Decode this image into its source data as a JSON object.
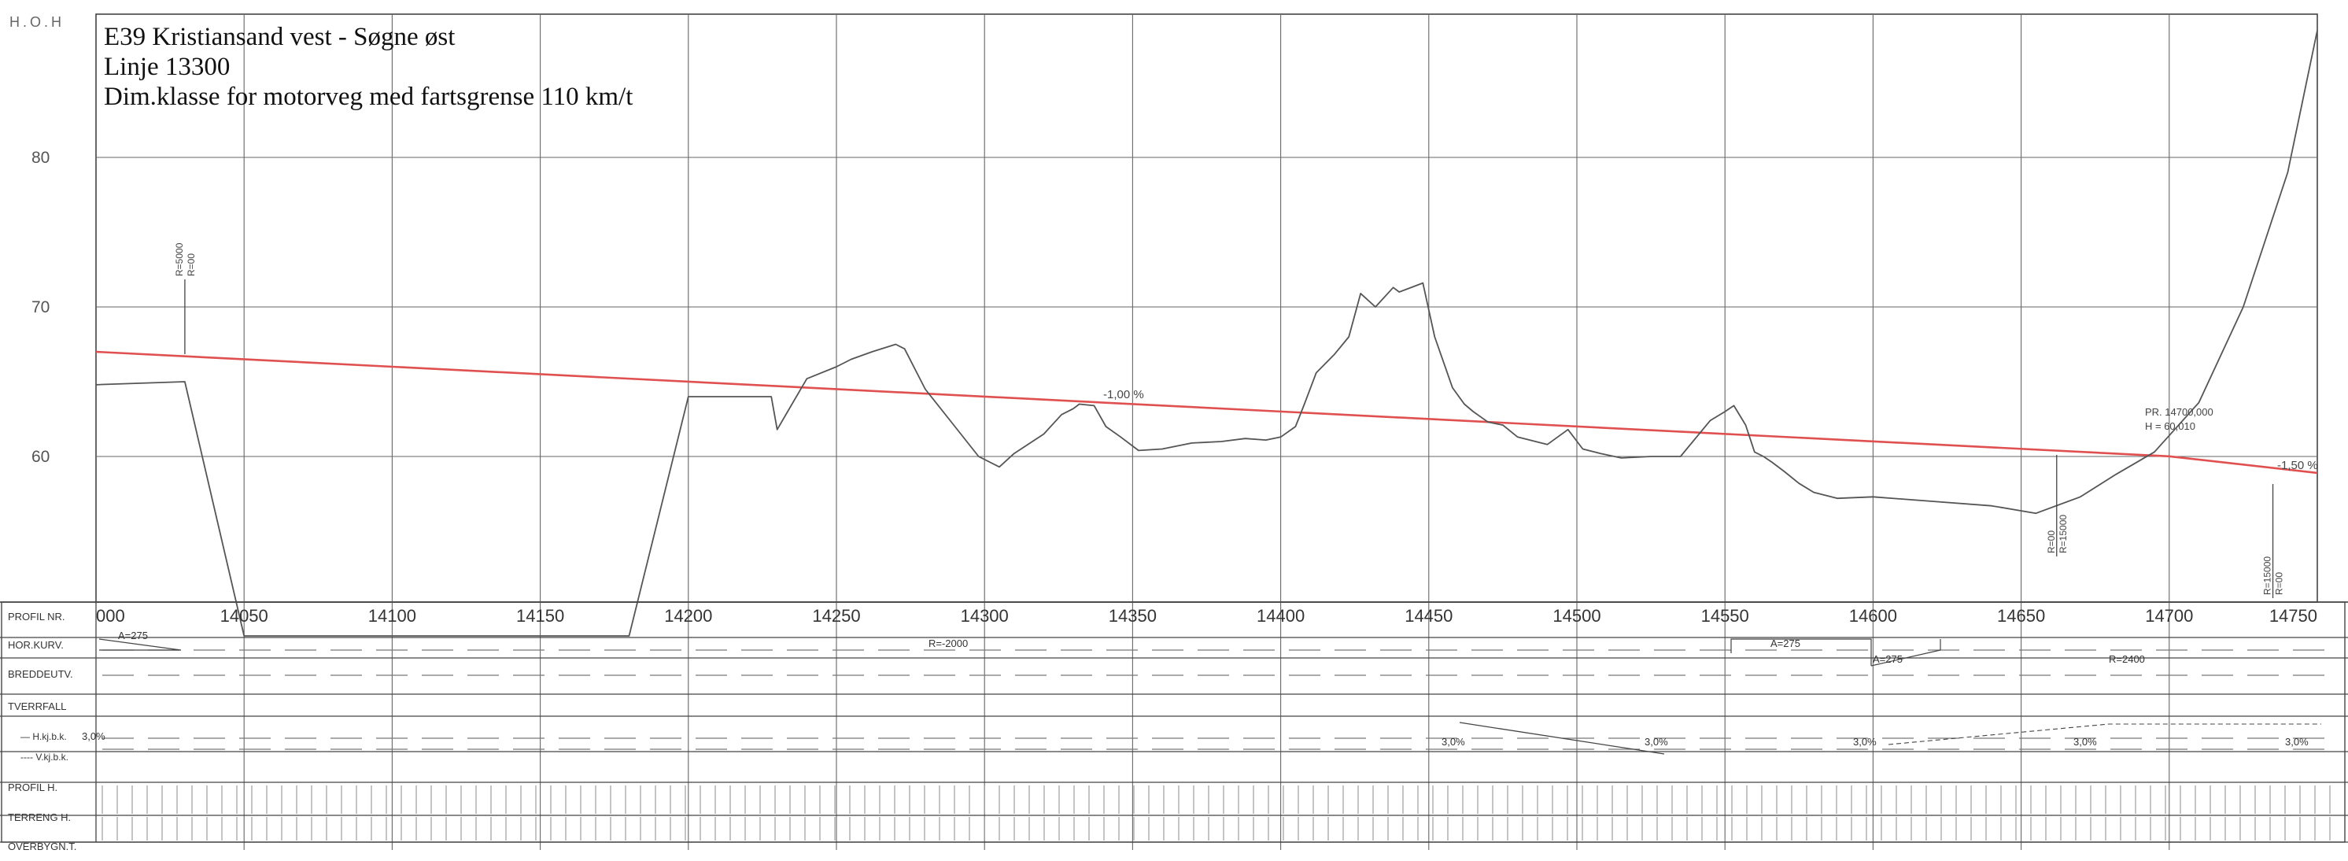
{
  "title": {
    "line1": "E39 Kristiansand vest - Søgne øst",
    "line2": "Linje 13300",
    "line3": "Dim.klasse for motorveg med fartsgrense 110 km/t"
  },
  "axis": {
    "ylabel": "H.O.H",
    "y_ticks": [
      "80",
      "70",
      "60"
    ],
    "x_ticks": [
      "14050",
      "14100",
      "14150",
      "14200",
      "14250",
      "14300",
      "14350",
      "14400",
      "14450",
      "14500",
      "14550",
      "14600",
      "14650",
      "14700",
      "14750"
    ],
    "x_first": "000",
    "x_range": [
      14000,
      14750
    ],
    "y_range": [
      50,
      90
    ]
  },
  "annotations": {
    "grade": "-1,00 %",
    "grade_end": "-1,50 %",
    "pr_label": "PR. 14700,000",
    "h_label": "H = 60,010",
    "vert_curve_1": "R=5000",
    "vert_curve_1b": "R=00",
    "vert_curve_2": "R=00",
    "vert_curve_2b": "R=15000",
    "vert_curve_3": "R=15000",
    "vert_curve_3b": "R=00"
  },
  "band_labels": {
    "profil_nr": "PROFIL NR.",
    "hor_kurv": "HOR.KURV.",
    "breddeutv": "BREDDEUTV.",
    "tverrfall": "TVERRFALL",
    "h_kj": "H.kj.b.k.",
    "v_kj": "V.kj.b.k.",
    "profil_h": "PROFIL H.",
    "terreng_h": "TERRENG H.",
    "overbygn": "OVERBYGN.T."
  },
  "band_values": {
    "hor_a1": "A=275",
    "hor_r1": "R=-2000",
    "hor_a2": "A=275",
    "hor_a3": "A=275",
    "hor_r2": "R=2400",
    "tv_1": "3,0%",
    "tv_2": "3,0%",
    "tv_3": "3,0%",
    "tv_4": "3,0%",
    "tv_5": "3,0%",
    "tv_6": "3,0%"
  },
  "chart_data": {
    "type": "line",
    "xlabel": "",
    "ylabel": "H.O.H",
    "xlim": [
      14000,
      14750
    ],
    "ylim": [
      50,
      90
    ],
    "grid": true,
    "series": [
      {
        "role": "proposed road profile",
        "color": "#e05050",
        "x": [
          14000,
          14700,
          14750
        ],
        "y": [
          67.0,
          60.01,
          58.9
        ]
      },
      {
        "role": "terrain",
        "color": "#555555",
        "x": [
          14000,
          14030,
          14050,
          14180,
          14200,
          14228,
          14230,
          14235,
          14240,
          14250,
          14255,
          14262,
          14270,
          14273,
          14280,
          14290,
          14298,
          14305,
          14310,
          14320,
          14326,
          14330,
          14332,
          14337,
          14341,
          14346,
          14352,
          14360,
          14370,
          14380,
          14388,
          14395,
          14400,
          14405,
          14408,
          14412,
          14418,
          14423,
          14427,
          14432,
          14438,
          14440,
          14448,
          14452,
          14455,
          14458,
          14462,
          14465,
          14470,
          14475,
          14480,
          14490,
          14497,
          14502,
          14508,
          14515,
          14525,
          14535,
          14545,
          14550,
          14553,
          14557,
          14560,
          14563,
          14566,
          14570,
          14575,
          14580,
          14588,
          14600,
          14620,
          14640,
          14655,
          14670,
          14682,
          14695,
          14710,
          14725,
          14740,
          14750
        ],
        "y": [
          64.8,
          65.0,
          48.0,
          48.0,
          64.0,
          64.0,
          61.8,
          63.5,
          65.2,
          66.0,
          66.5,
          67.0,
          67.5,
          67.2,
          64.5,
          62.0,
          60.0,
          59.3,
          60.2,
          61.5,
          62.8,
          63.2,
          63.5,
          63.4,
          62.0,
          61.3,
          60.4,
          60.5,
          60.9,
          61.0,
          61.2,
          61.1,
          61.3,
          62.0,
          63.5,
          65.6,
          66.8,
          68.0,
          70.9,
          70.0,
          71.3,
          71.0,
          71.6,
          68.0,
          66.3,
          64.6,
          63.5,
          63.0,
          62.3,
          62.1,
          61.3,
          60.8,
          61.8,
          60.5,
          60.2,
          59.9,
          60.0,
          60.0,
          62.4,
          63.0,
          63.4,
          62.1,
          60.3,
          60.0,
          59.6,
          59.0,
          58.2,
          57.6,
          57.2,
          57.3,
          57.0,
          56.7,
          56.2,
          57.3,
          58.8,
          60.3,
          63.6,
          70.0,
          79.0,
          88.5
        ]
      }
    ]
  }
}
